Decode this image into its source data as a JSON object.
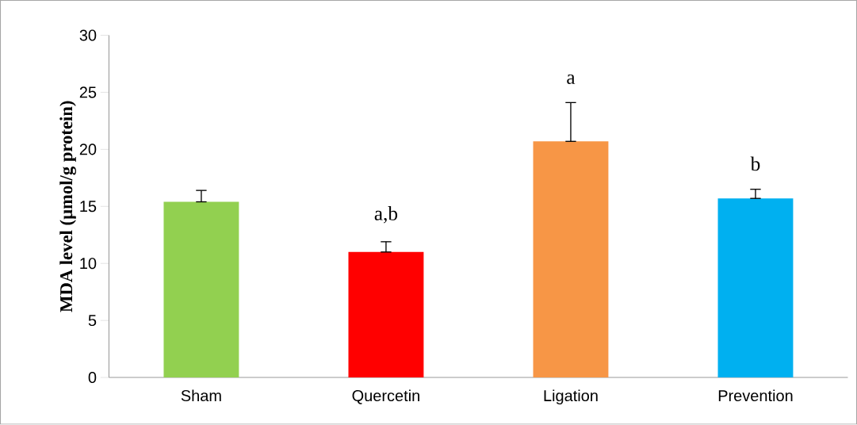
{
  "chart_data": {
    "type": "bar",
    "ylabel": "MDA level (µmol/g protein)",
    "categories": [
      "Sham",
      "Quercetin",
      "Ligation",
      "Prevention"
    ],
    "values": [
      15.4,
      11.0,
      20.7,
      15.7
    ],
    "errors": [
      [
        15.4,
        16.4
      ],
      [
        11.0,
        11.9
      ],
      [
        20.7,
        24.1
      ],
      [
        15.7,
        16.5
      ]
    ],
    "colors": [
      "#92d050",
      "#ff0000",
      "#f79646",
      "#00b0f0"
    ],
    "value_labels": [
      null,
      "a,b",
      "a",
      "b"
    ],
    "ylim": [
      0,
      30
    ],
    "yticks": [
      0,
      5,
      10,
      15,
      20,
      25,
      30
    ],
    "grid": false
  }
}
